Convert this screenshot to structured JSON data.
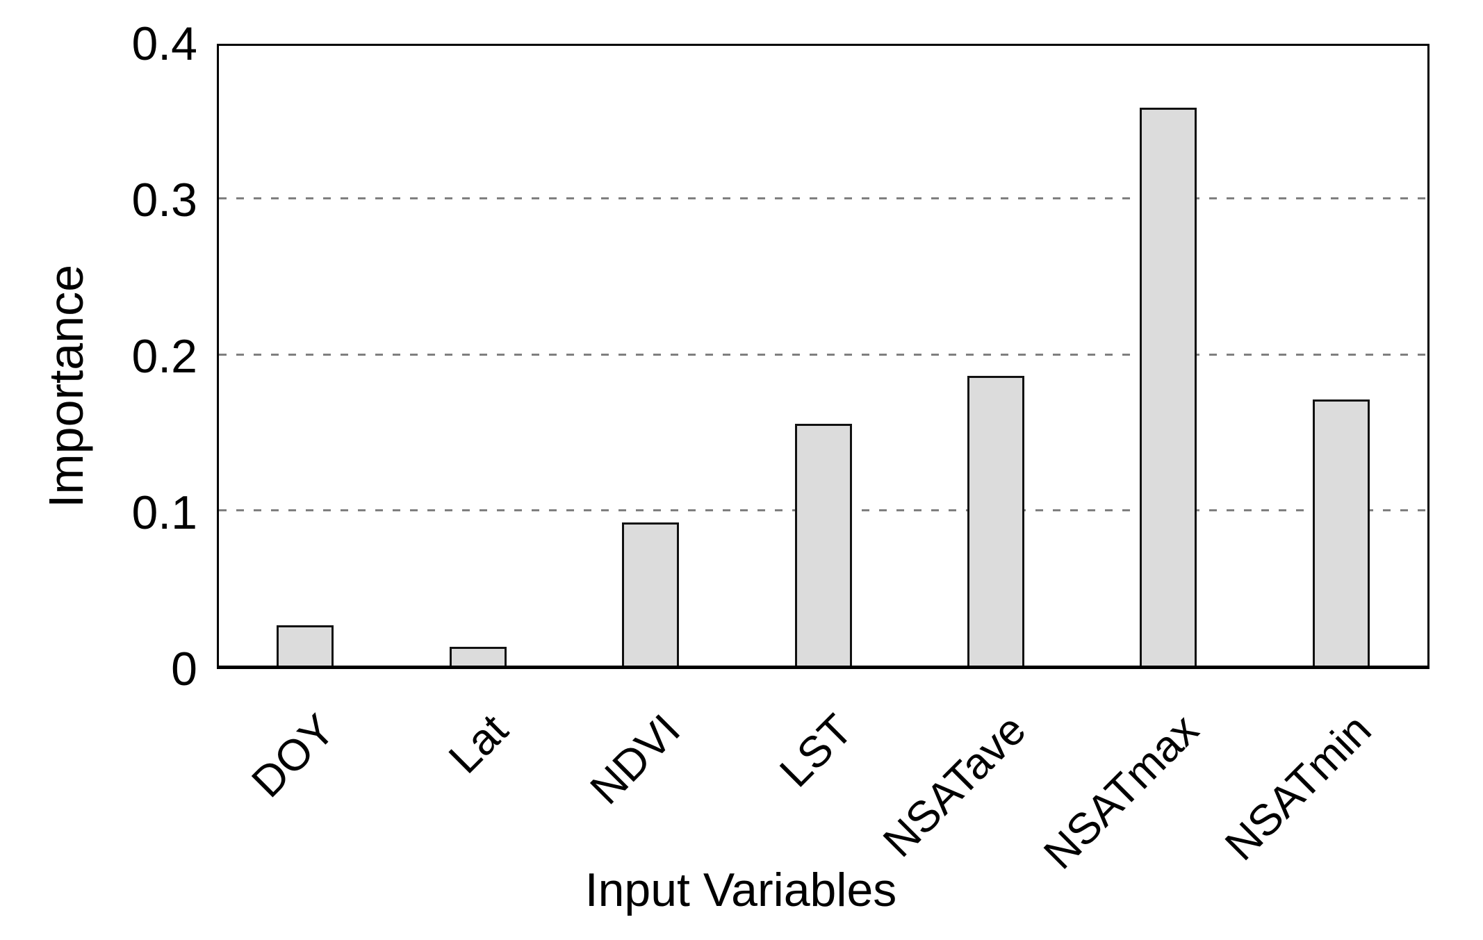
{
  "chart_data": {
    "type": "bar",
    "title": "",
    "xlabel": "Input Variables",
    "ylabel": "Importance",
    "categories": [
      "DOY",
      "Lat",
      "NDVI",
      "LST",
      "NSATave",
      "NSATmax",
      "NSATmin"
    ],
    "values": [
      0.026,
      0.012,
      0.092,
      0.155,
      0.186,
      0.358,
      0.171
    ],
    "ylim": [
      0,
      0.4
    ],
    "yticks": [
      0,
      0.1,
      0.2,
      0.3,
      0.4
    ],
    "ytick_labels": [
      "0",
      "0.1",
      "0.2",
      "0.3",
      "0.4"
    ],
    "gridlines": {
      "values": [
        0.1,
        0.2,
        0.3
      ],
      "style": "dashed",
      "color": "#7f7f7f"
    },
    "legend": "none",
    "bar_fill": "#dcdcdc",
    "bar_border": "#111111",
    "axis_color": "#000000",
    "background": "#ffffff",
    "xtick_rotation_deg": 45
  }
}
